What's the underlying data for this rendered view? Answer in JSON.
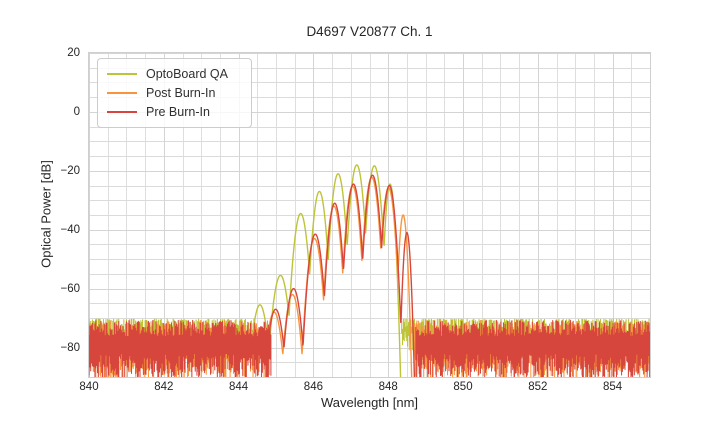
{
  "chart_data": {
    "type": "line",
    "title": "D4697 V20877 Ch. 1",
    "xlabel": "Wavelength [nm]",
    "ylabel": "Optical Power [dB]",
    "xlim": [
      840,
      855
    ],
    "ylim": [
      -90,
      20
    ],
    "xticks": [
      840,
      842,
      844,
      846,
      848,
      850,
      852,
      854
    ],
    "yticks": [
      20,
      0,
      -20,
      -40,
      -60,
      -80
    ],
    "xtick_labels": [
      "840",
      "842",
      "844",
      "846",
      "848",
      "850",
      "852",
      "854"
    ],
    "ytick_labels": [
      "20",
      "0",
      "−20",
      "−40",
      "−60",
      "−80"
    ],
    "grid": true,
    "minor_x_step_nm": 0.5,
    "minor_y_step_db": 5,
    "grid_color": "#dbdbdb",
    "major_grid_color": "#d4d4d4",
    "legend_position": "upper left",
    "mode_trough_depth_db": 24,
    "series": [
      {
        "name": "OptoBoard QA",
        "color": "#bdc437",
        "description": "laser spectrum, mode peaks as [wavelength_nm, peak_dB, width_nm]",
        "modes": [
          [
            844.57,
            -65.5,
            0.3
          ],
          [
            845.12,
            -55.5,
            0.3
          ],
          [
            845.66,
            -34.5,
            0.26
          ],
          [
            846.16,
            -27.0,
            0.24
          ],
          [
            846.66,
            -21.0,
            0.24
          ],
          [
            847.16,
            -18.0,
            0.24
          ],
          [
            847.63,
            -18.3,
            0.24
          ],
          [
            848.05,
            -24.5,
            0.17
          ]
        ],
        "signal_range": [
          844.3,
          848.5
        ],
        "noise_ranges": [
          [
            840.0,
            844.5
          ],
          [
            848.36,
            855.0
          ]
        ],
        "noise": {
          "top_db": -70.2,
          "top_spread": 5.2,
          "top_bias": 2,
          "bottom_db": -74.5,
          "bottom_spread": 6.5
        }
      },
      {
        "name": "Post Burn-In",
        "color": "#f7953e",
        "description": "laser spectrum, mode peaks as [wavelength_nm, peak_dB, width_nm]",
        "modes": [
          [
            844.95,
            -68.0,
            0.3
          ],
          [
            845.44,
            -62.0,
            0.28
          ],
          [
            846.03,
            -43.0,
            0.26
          ],
          [
            846.55,
            -32.0,
            0.24
          ],
          [
            847.05,
            -25.2,
            0.24
          ],
          [
            847.56,
            -22.2,
            0.24
          ],
          [
            848.01,
            -25.8,
            0.22
          ],
          [
            848.4,
            -35.0,
            0.15
          ]
        ],
        "signal_range": [
          844.72,
          848.72
        ],
        "noise_ranges": [
          [
            840.0,
            844.82
          ],
          [
            848.7,
            855.0
          ]
        ],
        "noise": {
          "top_db": -70.8,
          "top_spread": 5.5,
          "top_bias": 1,
          "bottom_db": -82.0,
          "bottom_spread": 9.0
        }
      },
      {
        "name": "Pre Burn-In",
        "color": "#d7463c",
        "description": "laser spectrum, mode peaks as [wavelength_nm, peak_dB, width_nm]",
        "modes": [
          [
            844.99,
            -67.0,
            0.3
          ],
          [
            845.47,
            -60.0,
            0.28
          ],
          [
            846.05,
            -41.5,
            0.26
          ],
          [
            846.57,
            -31.0,
            0.24
          ],
          [
            847.07,
            -24.5,
            0.24
          ],
          [
            847.58,
            -21.5,
            0.24
          ],
          [
            848.03,
            -25.0,
            0.22
          ],
          [
            848.5,
            -41.0,
            0.14
          ]
        ],
        "signal_range": [
          844.76,
          848.82
        ],
        "noise_ranges": [
          [
            840.0,
            844.88
          ],
          [
            848.74,
            855.0
          ]
        ],
        "noise": {
          "top_db": -70.8,
          "top_spread": 5.5,
          "top_bias": 1,
          "bottom_db": -82.0,
          "bottom_spread": 9.0
        }
      }
    ]
  }
}
